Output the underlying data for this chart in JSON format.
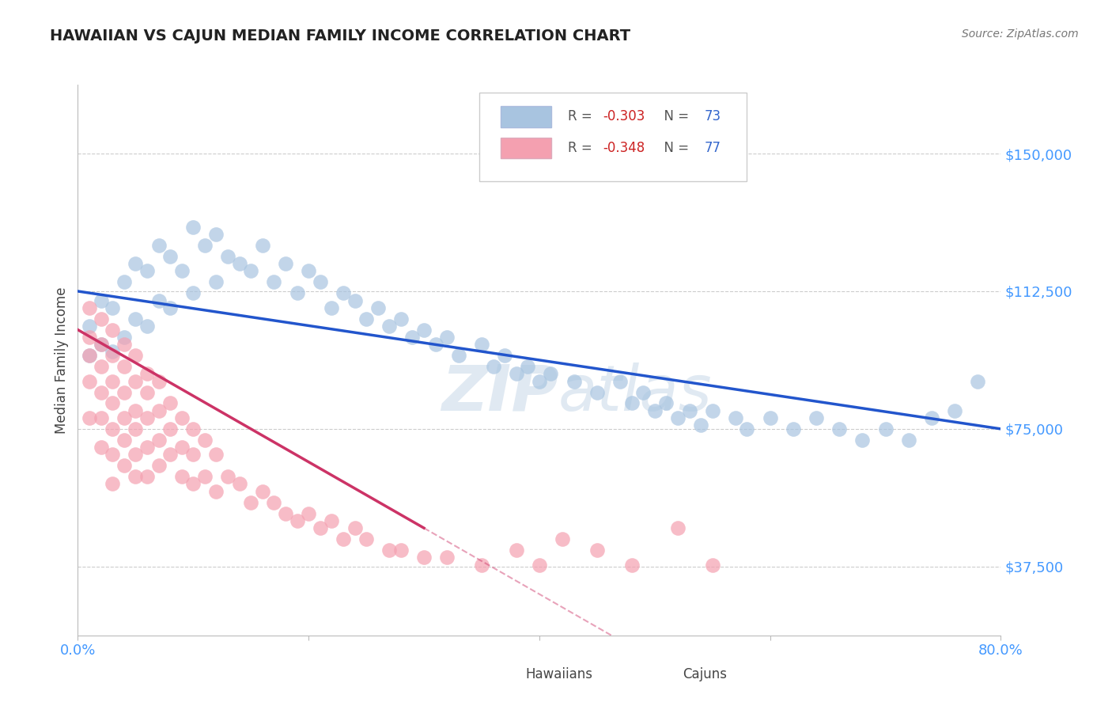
{
  "title": "HAWAIIAN VS CAJUN MEDIAN FAMILY INCOME CORRELATION CHART",
  "source": "Source: ZipAtlas.com",
  "ylabel": "Median Family Income",
  "xlim": [
    0.0,
    0.8
  ],
  "ylim": [
    18750,
    168750
  ],
  "yticks": [
    37500,
    75000,
    112500,
    150000
  ],
  "ytick_labels": [
    "$37,500",
    "$75,000",
    "$112,500",
    "$150,000"
  ],
  "xticks": [
    0.0,
    0.2,
    0.4,
    0.6,
    0.8
  ],
  "hawaiian_color": "#a8c4e0",
  "cajun_color": "#f4a0b0",
  "hawaiian_line_color": "#2255cc",
  "cajun_line_color": "#cc3366",
  "r_hawaiian": -0.303,
  "n_hawaiian": 73,
  "r_cajun": -0.348,
  "n_cajun": 77,
  "background_color": "#ffffff",
  "grid_color": "#cccccc",
  "watermark_zip": "ZIP",
  "watermark_atlas": "atlas",
  "hawaiian_x": [
    0.01,
    0.01,
    0.02,
    0.02,
    0.03,
    0.03,
    0.04,
    0.04,
    0.05,
    0.05,
    0.06,
    0.06,
    0.07,
    0.07,
    0.08,
    0.08,
    0.09,
    0.1,
    0.1,
    0.11,
    0.12,
    0.12,
    0.13,
    0.14,
    0.15,
    0.16,
    0.17,
    0.18,
    0.19,
    0.2,
    0.21,
    0.22,
    0.23,
    0.24,
    0.25,
    0.26,
    0.27,
    0.28,
    0.29,
    0.3,
    0.31,
    0.32,
    0.33,
    0.35,
    0.36,
    0.37,
    0.38,
    0.39,
    0.4,
    0.41,
    0.43,
    0.45,
    0.47,
    0.48,
    0.49,
    0.5,
    0.51,
    0.52,
    0.53,
    0.54,
    0.55,
    0.57,
    0.58,
    0.6,
    0.62,
    0.64,
    0.66,
    0.68,
    0.7,
    0.72,
    0.74,
    0.76,
    0.78
  ],
  "hawaiian_y": [
    103000,
    95000,
    110000,
    98000,
    108000,
    96000,
    115000,
    100000,
    120000,
    105000,
    118000,
    103000,
    125000,
    110000,
    122000,
    108000,
    118000,
    130000,
    112000,
    125000,
    128000,
    115000,
    122000,
    120000,
    118000,
    125000,
    115000,
    120000,
    112000,
    118000,
    115000,
    108000,
    112000,
    110000,
    105000,
    108000,
    103000,
    105000,
    100000,
    102000,
    98000,
    100000,
    95000,
    98000,
    92000,
    95000,
    90000,
    92000,
    88000,
    90000,
    88000,
    85000,
    88000,
    82000,
    85000,
    80000,
    82000,
    78000,
    80000,
    76000,
    80000,
    78000,
    75000,
    78000,
    75000,
    78000,
    75000,
    72000,
    75000,
    72000,
    78000,
    80000,
    88000
  ],
  "cajun_x": [
    0.01,
    0.01,
    0.01,
    0.01,
    0.01,
    0.02,
    0.02,
    0.02,
    0.02,
    0.02,
    0.02,
    0.03,
    0.03,
    0.03,
    0.03,
    0.03,
    0.03,
    0.03,
    0.04,
    0.04,
    0.04,
    0.04,
    0.04,
    0.04,
    0.05,
    0.05,
    0.05,
    0.05,
    0.05,
    0.05,
    0.06,
    0.06,
    0.06,
    0.06,
    0.06,
    0.07,
    0.07,
    0.07,
    0.07,
    0.08,
    0.08,
    0.08,
    0.09,
    0.09,
    0.09,
    0.1,
    0.1,
    0.1,
    0.11,
    0.11,
    0.12,
    0.12,
    0.13,
    0.14,
    0.15,
    0.16,
    0.17,
    0.18,
    0.19,
    0.2,
    0.21,
    0.22,
    0.23,
    0.24,
    0.25,
    0.27,
    0.28,
    0.3,
    0.32,
    0.35,
    0.38,
    0.4,
    0.42,
    0.45,
    0.48,
    0.52,
    0.55
  ],
  "cajun_y": [
    108000,
    100000,
    95000,
    88000,
    78000,
    105000,
    98000,
    92000,
    85000,
    78000,
    70000,
    102000,
    95000,
    88000,
    82000,
    75000,
    68000,
    60000,
    98000,
    92000,
    85000,
    78000,
    72000,
    65000,
    95000,
    88000,
    80000,
    75000,
    68000,
    62000,
    90000,
    85000,
    78000,
    70000,
    62000,
    88000,
    80000,
    72000,
    65000,
    82000,
    75000,
    68000,
    78000,
    70000,
    62000,
    75000,
    68000,
    60000,
    72000,
    62000,
    68000,
    58000,
    62000,
    60000,
    55000,
    58000,
    55000,
    52000,
    50000,
    52000,
    48000,
    50000,
    45000,
    48000,
    45000,
    42000,
    42000,
    40000,
    40000,
    38000,
    42000,
    38000,
    45000,
    42000,
    38000,
    48000,
    38000
  ]
}
